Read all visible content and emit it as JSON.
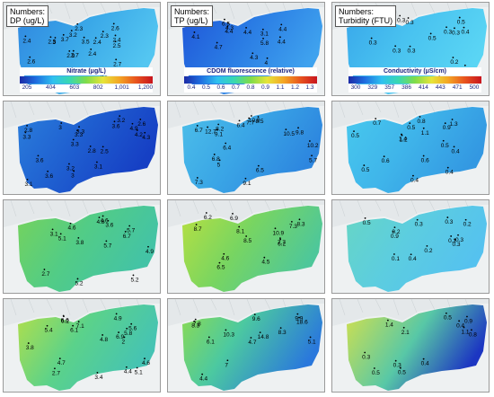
{
  "panels": [
    {
      "id": "dp1",
      "label": [
        "Numbers:",
        "DP (ug/L)"
      ],
      "gradient": "blue1",
      "colorbar": {
        "title": "Nitrate  (μg/L)",
        "ticks": [
          "205",
          "404",
          "603",
          "802",
          "1,001",
          "1,200"
        ]
      },
      "points": [
        "2.5",
        "3.2",
        "3",
        "2.3",
        "3.5",
        "2.6",
        "2.3",
        "2.4",
        "2.4",
        "2.1",
        "3.7",
        "3.5",
        "2.9",
        "2.5",
        "2.7",
        "2.4",
        "2.4",
        "2.7",
        "2.6"
      ]
    },
    {
      "id": "tp1",
      "label": [
        "Numbers:",
        "TP (ug/L)"
      ],
      "gradient": "blue2",
      "colorbar": {
        "title": "CDOM fluorescence (relative)",
        "ticks": [
          "0.4",
          "0.5",
          "0.6",
          "0.7",
          "0.8",
          "0.9",
          "1.1",
          "1.2",
          "1.3"
        ]
      },
      "points": [
        "4.1",
        "3.1",
        "4.4",
        "6.5",
        "4.4",
        "4.4",
        "4.4",
        "4.3",
        "5.8",
        "5.6",
        "4.3",
        "4.7",
        "4"
      ]
    },
    {
      "id": "tu1",
      "label": [
        "Numbers:",
        "Turbidity (FTU)"
      ],
      "gradient": "blue3",
      "colorbar": {
        "title": "Conductivity (μS/cm)",
        "ticks": [
          "300",
          "329",
          "357",
          "386",
          "414",
          "443",
          "471",
          "500"
        ]
      },
      "points": [
        "0.4",
        "0.3",
        "0.3",
        "0.3",
        "0.3",
        "0.3",
        "0.5",
        "0.5",
        "0.3",
        "0.3",
        "0.3",
        "0.2",
        "0.2"
      ]
    },
    {
      "id": "dp2",
      "label": [],
      "gradient": "blue4",
      "colorbar": null,
      "points": [
        "3.6",
        "2.8",
        "3.3",
        "3.3",
        "3.3",
        "3.2",
        "4.3",
        "2.6",
        "3",
        "4.2",
        "4.9",
        "3",
        "3.6",
        "3.1",
        "3.2",
        "3.6",
        "3.3",
        "2.8",
        "3.1",
        "2.5"
      ]
    },
    {
      "id": "tp2",
      "label": [],
      "gradient": "blue5",
      "colorbar": null,
      "points": [
        "8.5",
        "8.2",
        "10.9",
        "9.8",
        "6.4",
        "10.5",
        "6.7",
        "9.1",
        "12.7",
        "7.7",
        "7.3",
        "10.2",
        "9.1",
        "6.8",
        "6.5",
        "6.4",
        "5.7",
        "5"
      ]
    },
    {
      "id": "tu2",
      "label": [],
      "gradient": "blue6",
      "colorbar": null,
      "points": [
        "1.2",
        "0.5",
        "1.1",
        "0.9",
        "1.4",
        "1.3",
        "0.7",
        "0.8",
        "0.5",
        "0.5",
        "0.6",
        "0.6",
        "0.5",
        "0.4",
        "0.4",
        "0.4"
      ]
    },
    {
      "id": "dp3",
      "label": [],
      "gradient": "green1",
      "colorbar": null,
      "points": [
        "3.1",
        "3.6",
        "4.6",
        "4.8",
        "4.6",
        "6.7",
        "5.1",
        "5.7",
        "5.2",
        "5.7",
        "5.2",
        "2.7",
        "4.9",
        "3.8"
      ]
    },
    {
      "id": "tp3",
      "label": [],
      "gradient": "green2",
      "colorbar": null,
      "points": [
        "8.7",
        "8.3",
        "10.9",
        "8.5",
        "6.9",
        "7.3",
        "8.1",
        "6.2",
        "7.7",
        "6.5",
        "4.5",
        "6.2",
        "4.6"
      ]
    },
    {
      "id": "tu3",
      "label": [],
      "gradient": "green3",
      "colorbar": null,
      "points": [
        "0.2",
        "0.5",
        "0.3",
        "0.9",
        "0.2",
        "0.3",
        "0.3",
        "0.4",
        "0.2",
        "0.3",
        "0.2",
        "0.1"
      ]
    },
    {
      "id": "dp4",
      "label": [],
      "gradient": "green4",
      "colorbar": null,
      "points": [
        "4.9",
        "6.6",
        "5.8",
        "5.4",
        "6.2",
        "5.6",
        "4.8",
        "6.9",
        "7.1",
        "6.1",
        "4.6",
        "5.1",
        "4.4",
        "4.7",
        "3.4",
        "2.7",
        "3.8",
        "2"
      ]
    },
    {
      "id": "tp4",
      "label": [],
      "gradient": "mixed5",
      "colorbar": null,
      "points": [
        "14.8",
        "9.6",
        "18.6",
        "8.3",
        "10.3",
        "9.9",
        "8.3",
        "7.8",
        "7",
        "5.1",
        "6.1",
        "4.7",
        "4.4"
      ]
    },
    {
      "id": "tu4",
      "label": [],
      "gradient": "mixed6",
      "colorbar": null,
      "points": [
        "2.1",
        "0.5",
        "0.8",
        "0.9",
        "1.4",
        "1.1",
        "0.4",
        "0.5",
        "0.5",
        "0.4",
        "0.3",
        "0.3"
      ]
    }
  ]
}
